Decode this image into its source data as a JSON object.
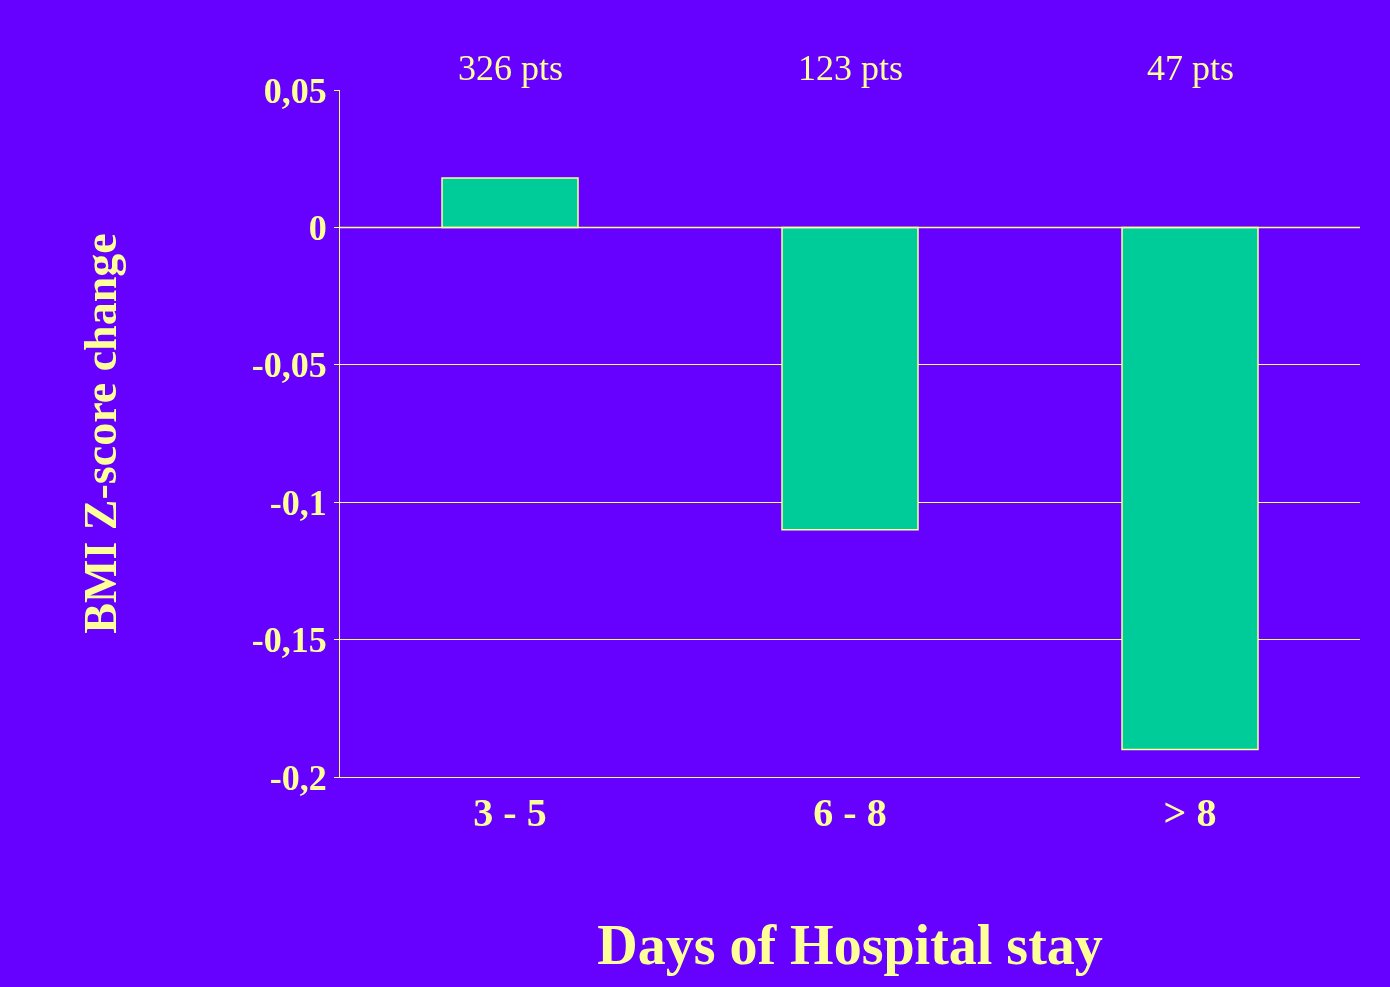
{
  "chart_data": {
    "type": "bar",
    "xlabel": "Days of Hospital stay",
    "ylabel": "BMI Z-score change",
    "categories": [
      "3 - 5",
      "6 - 8",
      "> 8"
    ],
    "values": [
      0.018,
      -0.11,
      -0.19
    ],
    "color": "#00cc99",
    "ylim": [
      -0.2,
      0.05
    ],
    "yticks": [
      {
        "value": 0.05,
        "label": "0,05"
      },
      0,
      {
        "value": -0.05,
        "label": "-0,05"
      },
      {
        "value": -0.1,
        "label": "-0,1"
      },
      {
        "value": -0.15,
        "label": "-0,15"
      },
      {
        "value": -0.2,
        "label": "-0,2"
      }
    ],
    "grid": "y",
    "ref_lines": [
      {
        "axis": "y",
        "value": 0,
        "color": "#ffff99"
      }
    ],
    "annotations": [
      "326 pts",
      "123 pts",
      "47 pts"
    ]
  }
}
